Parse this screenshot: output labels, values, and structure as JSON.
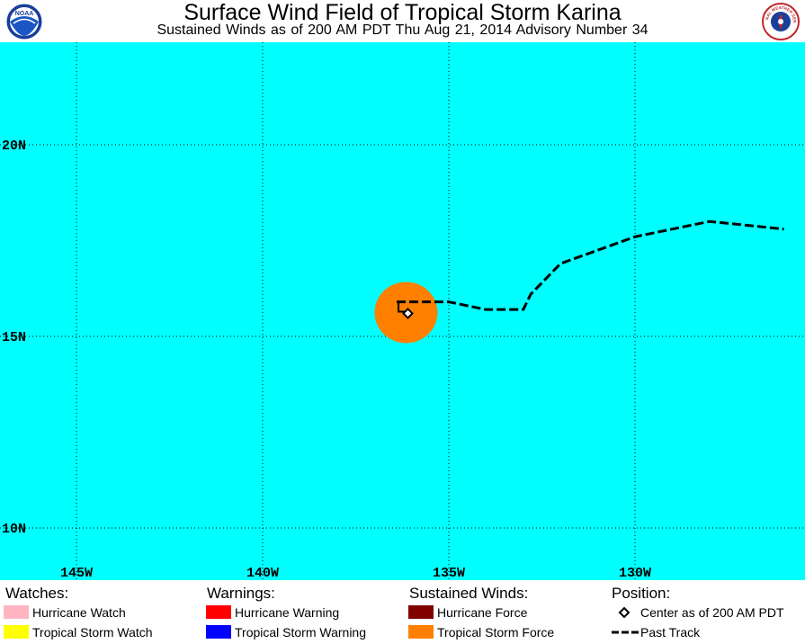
{
  "header": {
    "title": "Surface Wind Field of Tropical Storm Karina",
    "subtitle": "Sustained Winds as of 200 AM PDT Thu Aug 21, 2014    Advisory Number 34",
    "left_logo_text": "NOAA",
    "right_logo_text": "NATIONAL WEATHER SERVICE"
  },
  "map": {
    "ocean_color": "#00FFFF",
    "lat_labels": [
      "20N",
      "15N",
      "10N"
    ],
    "lon_labels": [
      "145W",
      "140W",
      "135W",
      "130W"
    ],
    "storm": {
      "center": {
        "lat": 15.6,
        "lon": -136.1
      },
      "tropical_storm_force_color": "#FF8000",
      "past_track": [
        {
          "lat": 15.9,
          "lon": -136.4
        },
        {
          "lat": 15.9,
          "lon": -135.0
        },
        {
          "lat": 15.7,
          "lon": -134.0
        },
        {
          "lat": 15.7,
          "lon": -133.0
        },
        {
          "lat": 16.1,
          "lon": -132.8
        },
        {
          "lat": 16.9,
          "lon": -132.0
        },
        {
          "lat": 17.6,
          "lon": -130.0
        },
        {
          "lat": 18.0,
          "lon": -128.0
        },
        {
          "lat": 17.8,
          "lon": -126.0
        }
      ]
    }
  },
  "legend": {
    "watches": {
      "heading": "Watches:",
      "items": [
        {
          "label": "Hurricane Watch",
          "color": "#FFB6C1"
        },
        {
          "label": "Tropical Storm Watch",
          "color": "#FFFF00"
        }
      ]
    },
    "warnings": {
      "heading": "Warnings:",
      "items": [
        {
          "label": "Hurricane Warning",
          "color": "#FF0000"
        },
        {
          "label": "Tropical Storm Warning",
          "color": "#0000FF"
        }
      ]
    },
    "winds": {
      "heading": "Sustained Winds:",
      "items": [
        {
          "label": "Hurricane Force",
          "color": "#800000"
        },
        {
          "label": "Tropical Storm Force",
          "color": "#FF8000"
        }
      ]
    },
    "position": {
      "heading": "Position:",
      "center_label": "Center as of 200 AM PDT",
      "track_label": "Past Track"
    }
  }
}
